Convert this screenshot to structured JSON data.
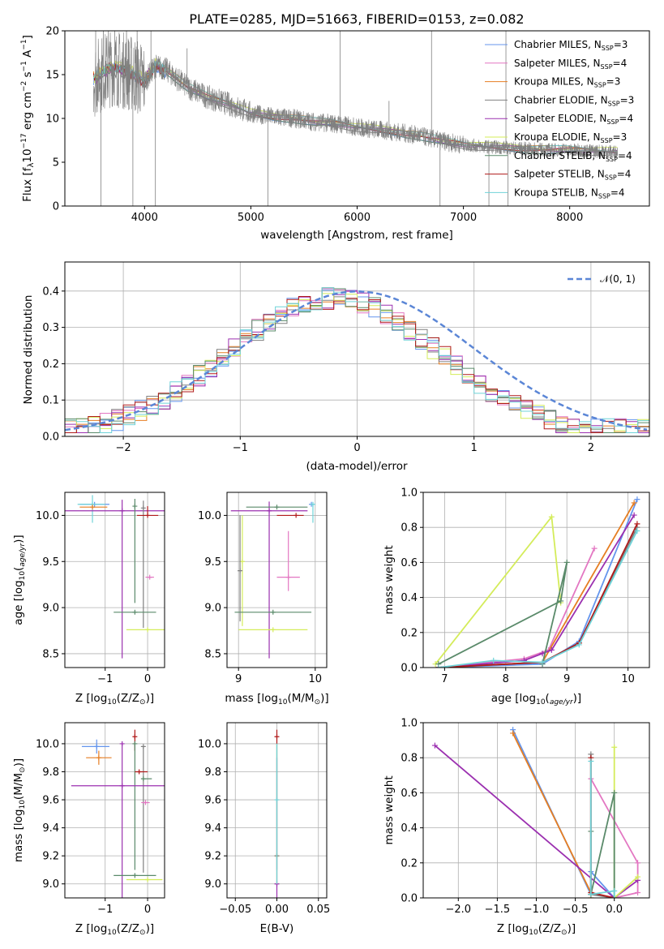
{
  "figure": {
    "title": "PLATE=0285, MJD=51663, FIBERID=0153, z=0.082"
  },
  "series_styles": [
    {
      "name": "Chabrier MILES, N",
      "sub": "SSP",
      "suffix": "=3",
      "color": "#6495ed"
    },
    {
      "name": "Salpeter MILES, N",
      "sub": "SSP",
      "suffix": "=4",
      "color": "#e377c2"
    },
    {
      "name": "Kroupa MILES, N",
      "sub": "SSP",
      "suffix": "=3",
      "color": "#e67e22"
    },
    {
      "name": "Chabrier ELODIE, N",
      "sub": "SSP",
      "suffix": "=3",
      "color": "#808080"
    },
    {
      "name": "Salpeter ELODIE, N",
      "sub": "SSP",
      "suffix": "=4",
      "color": "#9b30b0"
    },
    {
      "name": "Kroupa ELODIE, N",
      "sub": "SSP",
      "suffix": "=3",
      "color": "#d4ec5a"
    },
    {
      "name": "Chabrier STELIB, N",
      "sub": "SSP",
      "suffix": "=4",
      "color": "#5a8a6a"
    },
    {
      "name": "Salpeter STELIB, N",
      "sub": "SSP",
      "suffix": "=4",
      "color": "#b01a1a"
    },
    {
      "name": "Kroupa STELIB, N",
      "sub": "SSP",
      "suffix": "=4",
      "color": "#6fd3d8"
    }
  ],
  "chart_data": [
    {
      "id": "spectrum",
      "type": "line",
      "xlabel": "wavelength [Angstrom, rest frame]",
      "ylabel_parts": [
        "Flux [f",
        "λ",
        "10",
        "−17",
        " erg cm",
        "−2",
        " s",
        "−1",
        " A",
        "−1",
        "]"
      ],
      "xlim": [
        3250,
        8750
      ],
      "ylim": [
        0,
        20
      ],
      "xticks": [
        4000,
        5000,
        6000,
        7000,
        8000
      ],
      "yticks": [
        0,
        5,
        10,
        15,
        20
      ],
      "grid": false,
      "legend": "top-right",
      "data_color": "#808080",
      "continuum": [
        [
          3520,
          14.5
        ],
        [
          3600,
          15.2
        ],
        [
          3700,
          15.8
        ],
        [
          3800,
          15.5
        ],
        [
          3900,
          15.0
        ],
        [
          4000,
          14.2
        ],
        [
          4100,
          16.0
        ],
        [
          4200,
          15.6
        ],
        [
          4400,
          13.6
        ],
        [
          4600,
          12.4
        ],
        [
          4800,
          11.6
        ],
        [
          5000,
          10.6
        ],
        [
          5200,
          10.2
        ],
        [
          5400,
          10.0
        ],
        [
          5600,
          9.6
        ],
        [
          5800,
          9.4
        ],
        [
          6000,
          9.0
        ],
        [
          6200,
          8.7
        ],
        [
          6400,
          8.4
        ],
        [
          6600,
          8.0
        ],
        [
          6800,
          7.4
        ],
        [
          7000,
          7.0
        ],
        [
          7200,
          6.8
        ],
        [
          7500,
          6.6
        ],
        [
          7800,
          6.4
        ],
        [
          8000,
          6.4
        ],
        [
          8200,
          6.3
        ],
        [
          8400,
          6.2
        ]
      ],
      "spikes": [
        [
          3540,
          20
        ],
        [
          3590,
          0
        ],
        [
          3612,
          20
        ],
        [
          3660,
          20
        ],
        [
          3720,
          20
        ],
        [
          3830,
          20
        ],
        [
          3890,
          0
        ],
        [
          3930,
          20
        ],
        [
          4060,
          20
        ],
        [
          4102,
          0
        ],
        [
          4400,
          18
        ],
        [
          5160,
          0
        ],
        [
          5840,
          20
        ],
        [
          6300,
          12
        ],
        [
          6700,
          20
        ],
        [
          6780,
          0
        ],
        [
          7240,
          0
        ],
        [
          7400,
          20
        ],
        [
          7420,
          0
        ]
      ]
    },
    {
      "id": "residuals",
      "type": "bar",
      "xlabel": "(data-model)/error",
      "ylabel": "Normed distribution",
      "xlim": [
        -2.5,
        2.5
      ],
      "ylim": [
        0,
        0.48
      ],
      "xticks": [
        -2,
        -1,
        0,
        1,
        2
      ],
      "yticks": [
        0.0,
        0.1,
        0.2,
        0.3,
        0.4
      ],
      "grid": true,
      "legend": "top-right",
      "gauss_label": "𝒩(0, 1)",
      "gauss_color": "#5b86d6",
      "bin_width": 0.1
    },
    {
      "id": "age-vs-Z",
      "type": "scatter",
      "xlabel_parts": [
        "Z [log",
        "10",
        "(Z/Z",
        "⊙",
        ")]"
      ],
      "ylabel_parts": [
        "age  [log",
        "10",
        "(",
        "age/yr",
        ")]"
      ],
      "xlim": [
        -1.95,
        0.4
      ],
      "ylim": [
        8.35,
        10.25
      ],
      "xticks": [
        -1,
        0
      ],
      "yticks": [
        8.5,
        9.0,
        9.5,
        10.0
      ],
      "grid": true,
      "points": [
        {
          "s": 0,
          "x": -1.25,
          "xe": [
            0.35,
            0.35
          ],
          "y": 10.12,
          "ye": [
            0.0,
            0.0
          ]
        },
        {
          "s": 8,
          "x": -1.3,
          "xe": [
            0.35,
            0.3
          ],
          "y": 10.12,
          "ye": [
            0.2,
            0.1
          ]
        },
        {
          "s": 2,
          "x": -1.3,
          "xe": [
            0.3,
            0.35
          ],
          "y": 10.09,
          "ye": [
            0.0,
            0.0
          ]
        },
        {
          "s": 4,
          "x": -0.6,
          "xe": [
            1.35,
            1.35
          ],
          "y": 10.05,
          "ye": [
            1.6,
            0.12
          ]
        },
        {
          "s": 6,
          "x": -0.3,
          "xe": [
            0.0,
            0.0
          ],
          "y": 10.1,
          "ye": [
            1.05,
            0.08
          ]
        },
        {
          "s": 3,
          "x": -0.1,
          "xe": [
            0.0,
            0.0
          ],
          "y": 10.08,
          "ye": [
            1.3,
            0.08
          ]
        },
        {
          "s": 7,
          "x": 0.0,
          "xe": [
            0.25,
            0.25
          ],
          "y": 10.0,
          "ye": [
            0.0,
            0.1
          ]
        },
        {
          "s": 1,
          "x": 0.05,
          "xe": [
            0.1,
            0.1
          ],
          "y": 9.33,
          "ye": [
            0.0,
            0.0
          ]
        },
        {
          "s": 6,
          "x": -0.3,
          "xe": [
            0.5,
            0.5
          ],
          "y": 8.95,
          "ye": [
            0.0,
            0.0
          ]
        },
        {
          "s": 5,
          "x": 0.0,
          "xe": [
            0.5,
            0.4
          ],
          "y": 8.76,
          "ye": [
            0.0,
            0.0
          ]
        }
      ]
    },
    {
      "id": "age-vs-mass",
      "type": "scatter",
      "xlabel_parts": [
        "mass [log",
        "10",
        "(M/M",
        "⊙",
        ")]"
      ],
      "ylabel": "",
      "xlim": [
        8.85,
        10.15
      ],
      "ylim": [
        8.35,
        10.25
      ],
      "xticks": [
        9,
        10
      ],
      "yticks": [
        8.5,
        9.0,
        9.5,
        10.0
      ],
      "grid": true,
      "points": [
        {
          "s": 0,
          "x": 9.95,
          "xe": [
            0.0,
            0.0
          ],
          "y": 10.12,
          "ye": [
            0.0,
            0.0
          ]
        },
        {
          "s": 8,
          "x": 9.97,
          "xe": [
            0.0,
            0.0
          ],
          "y": 10.12,
          "ye": [
            0.2,
            0.0
          ]
        },
        {
          "s": 4,
          "x": 9.4,
          "xe": [
            0.5,
            0.5
          ],
          "y": 10.05,
          "ye": [
            1.6,
            0.1
          ]
        },
        {
          "s": 6,
          "x": 9.5,
          "xe": [
            0.4,
            0.4
          ],
          "y": 10.09,
          "ye": [
            0.0,
            0.0
          ]
        },
        {
          "s": 7,
          "x": 9.75,
          "xe": [
            0.25,
            0.1
          ],
          "y": 10.0,
          "ye": [
            0.0,
            0.0
          ]
        },
        {
          "s": 5,
          "x": 9.05,
          "xe": [
            0.0,
            0.0
          ],
          "y": 9.5,
          "ye": [
            0.7,
            0.5
          ]
        },
        {
          "s": 3,
          "x": 9.02,
          "xe": [
            0.0,
            0.0
          ],
          "y": 9.4,
          "ye": [
            0.55,
            0.6
          ]
        },
        {
          "s": 1,
          "x": 9.65,
          "xe": [
            0.15,
            0.15
          ],
          "y": 9.33,
          "ye": [
            0.15,
            0.5
          ]
        },
        {
          "s": 6,
          "x": 9.45,
          "xe": [
            0.5,
            0.5
          ],
          "y": 8.95,
          "ye": [
            0.0,
            0.0
          ]
        },
        {
          "s": 5,
          "x": 9.45,
          "xe": [
            0.45,
            0.45
          ],
          "y": 8.76,
          "ye": [
            0.0,
            0.0
          ]
        }
      ]
    },
    {
      "id": "weight-vs-age",
      "type": "line",
      "xlabel_parts": [
        "age  [log",
        "10",
        "(",
        "age/yr",
        ")]"
      ],
      "ylabel": "mass weight",
      "xlim": [
        6.65,
        10.35
      ],
      "ylim": [
        0,
        1.0
      ],
      "xticks": [
        7,
        8,
        9,
        10
      ],
      "yticks": [
        0.0,
        0.2,
        0.4,
        0.6,
        0.8,
        1.0
      ],
      "grid": true,
      "series": [
        {
          "s": 0,
          "x": [
            6.9,
            8.6,
            9.2,
            10.15
          ],
          "y": [
            0.0,
            0.02,
            0.15,
            0.96
          ]
        },
        {
          "s": 1,
          "x": [
            6.9,
            8.3,
            8.7,
            9.45
          ],
          "y": [
            0.0,
            0.05,
            0.1,
            0.68
          ]
        },
        {
          "s": 2,
          "x": [
            6.9,
            8.6,
            10.1
          ],
          "y": [
            0.0,
            0.03,
            0.94
          ]
        },
        {
          "s": 3,
          "x": [
            6.9,
            8.6,
            9.2,
            10.15
          ],
          "y": [
            0.0,
            0.03,
            0.14,
            0.8
          ]
        },
        {
          "s": 4,
          "x": [
            6.9,
            8.3,
            8.6,
            8.75,
            10.1
          ],
          "y": [
            0.0,
            0.04,
            0.08,
            0.1,
            0.87
          ]
        },
        {
          "s": 5,
          "x": [
            6.85,
            8.75,
            8.9
          ],
          "y": [
            0.02,
            0.86,
            0.37
          ]
        },
        {
          "s": 6,
          "x": [
            6.9,
            8.9,
            9.0,
            8.6
          ],
          "y": [
            0.02,
            0.38,
            0.6,
            0.02
          ]
        },
        {
          "s": 7,
          "x": [
            6.9,
            8.6,
            9.2,
            10.15
          ],
          "y": [
            0.0,
            0.03,
            0.14,
            0.82
          ]
        },
        {
          "s": 8,
          "x": [
            6.9,
            7.8,
            8.6,
            9.2,
            10.15
          ],
          "y": [
            0.0,
            0.04,
            0.03,
            0.13,
            0.78
          ]
        }
      ]
    },
    {
      "id": "mass-vs-Z",
      "type": "scatter",
      "xlabel_parts": [
        "Z [log",
        "10",
        "(Z/Z",
        "⊙",
        ")]"
      ],
      "ylabel_parts": [
        "mass [log",
        "10",
        "(M/M",
        "⊙",
        ")]"
      ],
      "xlim": [
        -1.95,
        0.4
      ],
      "ylim": [
        8.9,
        10.15
      ],
      "xticks": [
        -1,
        0
      ],
      "yticks": [
        9.0,
        9.2,
        9.4,
        9.6,
        9.8,
        10.0
      ],
      "grid": true,
      "points": [
        {
          "s": 0,
          "x": -1.2,
          "xe": [
            0.35,
            0.3
          ],
          "y": 9.98,
          "ye": [
            0.05,
            0.05
          ]
        },
        {
          "s": 2,
          "x": -1.15,
          "xe": [
            0.3,
            0.3
          ],
          "y": 9.9,
          "ye": [
            0.05,
            0.05
          ]
        },
        {
          "s": 7,
          "x": -0.3,
          "xe": [
            0.0,
            0.0
          ],
          "y": 10.05,
          "ye": [
            0.1,
            0.05
          ]
        },
        {
          "s": 4,
          "x": -0.6,
          "xe": [
            0.0,
            0.0
          ],
          "y": 10.0,
          "ye": [
            1.1,
            0.0
          ]
        },
        {
          "s": 6,
          "x": -0.3,
          "xe": [
            0.0,
            0.0
          ],
          "y": 10.0,
          "ye": [
            0.9,
            0.0
          ]
        },
        {
          "s": 3,
          "x": -0.1,
          "xe": [
            0.0,
            0.0
          ],
          "y": 9.98,
          "ye": [
            0.9,
            0.0
          ]
        },
        {
          "s": 7,
          "x": -0.2,
          "xe": [
            0.1,
            0.2
          ],
          "y": 9.8,
          "ye": [
            0.0,
            0.0
          ]
        },
        {
          "s": 6,
          "x": -0.1,
          "xe": [
            0.0,
            0.2
          ],
          "y": 9.75,
          "ye": [
            0.0,
            0.0
          ]
        },
        {
          "s": 4,
          "x": -0.6,
          "xe": [
            1.2,
            1.0
          ],
          "y": 9.7,
          "ye": [
            0.0,
            0.0
          ]
        },
        {
          "s": 1,
          "x": -0.05,
          "xe": [
            0.1,
            0.1
          ],
          "y": 9.58,
          "ye": [
            0.0,
            0.0
          ]
        },
        {
          "s": 6,
          "x": -0.3,
          "xe": [
            0.5,
            0.5
          ],
          "y": 9.06,
          "ye": [
            0.0,
            0.0
          ]
        },
        {
          "s": 5,
          "x": 0.0,
          "xe": [
            0.5,
            0.35
          ],
          "y": 9.03,
          "ye": [
            0.0,
            0.0
          ]
        }
      ]
    },
    {
      "id": "mass-vs-EBV",
      "type": "scatter",
      "xlabel": "E(B-V)",
      "ylabel": "",
      "xlim": [
        -0.06,
        0.06
      ],
      "ylim": [
        8.9,
        10.15
      ],
      "xticks": [
        -0.05,
        0.0,
        0.05
      ],
      "yticks": [
        9.0,
        9.2,
        9.4,
        9.6,
        9.8,
        10.0
      ],
      "grid": true,
      "points": [
        {
          "s": 4,
          "x": 0.0,
          "xe": [
            0.0,
            0.0
          ],
          "y": 9.0,
          "ye": [
            0.1,
            0.9
          ]
        },
        {
          "s": 5,
          "x": 0.0,
          "xe": [
            0.0,
            0.0
          ],
          "y": 9.2,
          "ye": [
            0.2,
            0.8
          ]
        },
        {
          "s": 7,
          "x": 0.0,
          "xe": [
            0.0,
            0.0
          ],
          "y": 10.05,
          "ye": [
            0.05,
            0.05
          ]
        },
        {
          "s": 3,
          "x": 0.0,
          "xe": [
            0.0,
            0.0
          ],
          "y": 9.2,
          "ye": [
            0.1,
            0.8
          ]
        },
        {
          "s": 8,
          "x": 0.0,
          "xe": [
            0.0,
            0.0
          ],
          "y": 9.6,
          "ye": [
            0.6,
            0.4
          ]
        }
      ]
    },
    {
      "id": "weight-vs-Z",
      "type": "line",
      "xlabel_parts": [
        "Z [log",
        "10",
        "(Z/Z",
        "⊙",
        ")]"
      ],
      "ylabel": "mass weight",
      "xlim": [
        -2.45,
        0.45
      ],
      "ylim": [
        0,
        1.0
      ],
      "xticks": [
        -2.0,
        -1.5,
        -1.0,
        -0.5,
        0.0
      ],
      "yticks": [
        0.0,
        0.2,
        0.4,
        0.6,
        0.8,
        1.0
      ],
      "grid": true,
      "series": [
        {
          "s": 0,
          "x": [
            -1.3,
            -0.3,
            -0.3,
            0.0
          ],
          "y": [
            0.96,
            0.02,
            0.15,
            0.0
          ]
        },
        {
          "s": 1,
          "x": [
            -0.3,
            0.3,
            0.3,
            0.0
          ],
          "y": [
            0.68,
            0.2,
            0.03,
            0.0
          ]
        },
        {
          "s": 2,
          "x": [
            -1.3,
            -0.3,
            -0.3
          ],
          "y": [
            0.94,
            0.03,
            0.0
          ]
        },
        {
          "s": 3,
          "x": [
            -0.3,
            -0.3,
            0.0
          ],
          "y": [
            0.82,
            0.02,
            0.0
          ]
        },
        {
          "s": 4,
          "x": [
            -2.3,
            0.0,
            0.3
          ],
          "y": [
            0.87,
            0.0,
            0.1
          ]
        },
        {
          "s": 5,
          "x": [
            0.0,
            0.0,
            0.3,
            0.0
          ],
          "y": [
            0.86,
            0.0,
            0.12,
            0.0
          ]
        },
        {
          "s": 6,
          "x": [
            -0.3,
            -0.3,
            0.0,
            0.0
          ],
          "y": [
            0.38,
            0.02,
            0.6,
            0.0
          ]
        },
        {
          "s": 7,
          "x": [
            -0.3,
            -0.3,
            0.0
          ],
          "y": [
            0.8,
            0.03,
            0.0
          ]
        },
        {
          "s": 8,
          "x": [
            -0.3,
            -0.3,
            0.0,
            0.0
          ],
          "y": [
            0.78,
            0.02,
            0.04,
            0.0
          ]
        }
      ]
    }
  ]
}
